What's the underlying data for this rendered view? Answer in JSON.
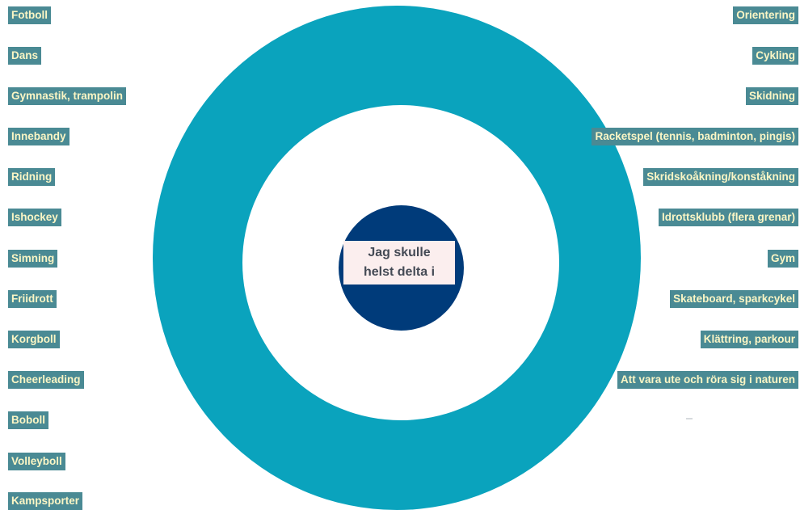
{
  "center": {
    "label": "Jag skulle\nhelst delta i"
  },
  "colors": {
    "ring": "#0aa3bd",
    "center_dot": "#003b7a",
    "center_label_bg": "#fbeeee",
    "chip_bg": "#4a8a94",
    "chip_text": "#fbf6c5"
  },
  "left_items": [
    "Fotboll",
    "Dans",
    "Gymnastik, trampolin",
    "Innebandy",
    "Ridning",
    "Ishockey",
    "Simning",
    "Friidrott",
    "Korgboll",
    "Cheerleading",
    "Boboll",
    "Volleyboll",
    "Kampsporter"
  ],
  "right_items": [
    "Orientering",
    "Cykling",
    "Skidning",
    "Racketspel (tennis, badminton, pingis)",
    "Skridskoåkning/konståkning",
    "Idrottsklubb (flera grenar)",
    "Gym",
    "Skateboard, sparkcykel",
    "Klättring, parkour",
    "Att vara ute och röra sig i naturen"
  ]
}
